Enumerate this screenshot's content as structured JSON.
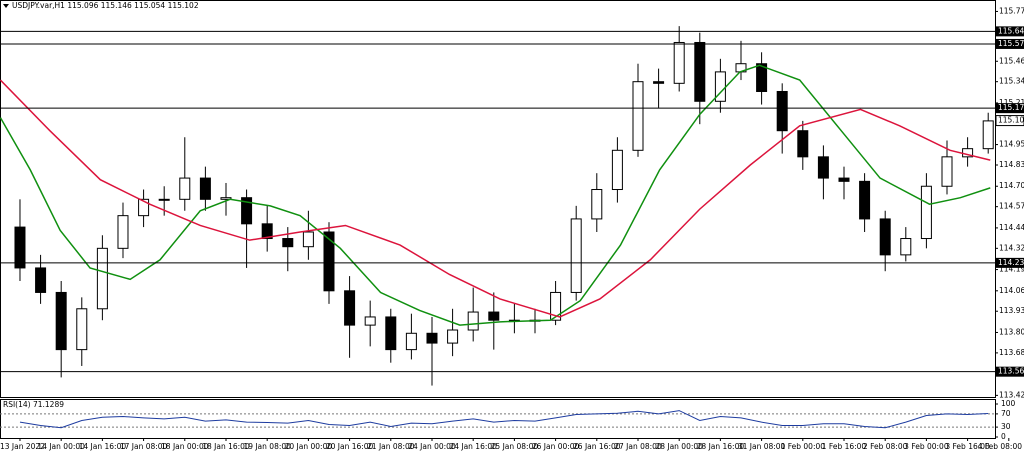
{
  "chart_data": {
    "type": "candlestick",
    "title": "USDJPY.var,H1",
    "quote": [
      115.096,
      115.146,
      115.054,
      115.102
    ],
    "x": [
      0,
      2,
      4,
      6,
      8,
      10,
      12,
      14,
      16,
      18,
      20,
      22,
      24,
      26,
      28,
      30,
      32,
      34,
      36,
      38,
      40,
      42,
      44,
      46,
      48,
      50,
      52,
      54,
      56,
      58,
      60,
      62,
      64,
      66,
      68,
      70,
      72,
      74,
      76,
      78,
      80,
      82,
      84,
      86,
      88,
      90,
      92,
      94
    ],
    "open": [
      114.45,
      114.2,
      114.05,
      113.7,
      113.95,
      114.32,
      114.52,
      114.62,
      114.62,
      114.75,
      114.62,
      114.63,
      114.47,
      114.38,
      114.33,
      114.42,
      114.06,
      113.85,
      113.9,
      113.7,
      113.8,
      113.74,
      113.82,
      113.93,
      113.88,
      113.88,
      113.88,
      114.05,
      114.5,
      114.68,
      114.92,
      115.34,
      115.33,
      115.58,
      115.22,
      115.4,
      115.45,
      115.28,
      115.04,
      114.88,
      114.75,
      114.73,
      114.5,
      114.28,
      114.38,
      114.7,
      114.88,
      114.93
    ],
    "high": [
      114.62,
      114.28,
      114.12,
      114.02,
      114.4,
      114.6,
      114.68,
      114.7,
      115.0,
      114.82,
      114.72,
      114.68,
      114.58,
      114.45,
      114.55,
      114.48,
      114.15,
      114.0,
      113.95,
      113.92,
      113.9,
      113.95,
      114.08,
      114.05,
      113.98,
      113.95,
      114.12,
      114.58,
      114.78,
      115.0,
      115.45,
      115.42,
      115.68,
      115.64,
      115.48,
      115.59,
      115.52,
      115.33,
      115.1,
      114.95,
      114.82,
      114.78,
      114.55,
      114.45,
      114.78,
      114.98,
      115.0,
      115.15
    ],
    "low": [
      114.12,
      113.98,
      113.53,
      113.6,
      113.88,
      114.26,
      114.45,
      114.52,
      114.55,
      114.55,
      114.52,
      114.2,
      114.3,
      114.18,
      114.25,
      113.98,
      113.65,
      113.72,
      113.62,
      113.64,
      113.48,
      113.66,
      113.75,
      113.7,
      113.8,
      113.8,
      113.85,
      114.0,
      114.42,
      114.6,
      114.88,
      115.18,
      115.28,
      115.08,
      115.15,
      115.35,
      115.2,
      114.9,
      114.8,
      114.62,
      114.62,
      114.42,
      114.18,
      114.24,
      114.32,
      114.65,
      114.82,
      114.9
    ],
    "close": [
      114.2,
      114.05,
      113.7,
      113.95,
      114.32,
      114.52,
      114.62,
      114.62,
      114.75,
      114.62,
      114.63,
      114.47,
      114.38,
      114.33,
      114.42,
      114.06,
      113.85,
      113.9,
      113.7,
      113.8,
      113.74,
      113.82,
      113.93,
      113.88,
      113.88,
      113.88,
      114.05,
      114.5,
      114.68,
      114.92,
      115.34,
      115.33,
      115.58,
      115.22,
      115.4,
      115.45,
      115.28,
      115.04,
      114.88,
      114.75,
      114.73,
      114.5,
      114.28,
      114.38,
      114.7,
      114.88,
      114.93,
      115.1
    ],
    "up_color": "#ffffff",
    "down_color": "#000000",
    "candle_outline": "#000000",
    "moving_averages": [
      {
        "color": "#109010",
        "x": [
          -1.9,
          1.0,
          3.9,
          6.8,
          10.7,
          13.6,
          17.5,
          20.4,
          24.3,
          27.2,
          31.1,
          35.0,
          38.8,
          42.7,
          46.6,
          51.5,
          54.4,
          58.3,
          62.1,
          66.0,
          69.9,
          71.8,
          75.7,
          79.6,
          83.5,
          88.3,
          91.3,
          94.2
        ],
        "values": [
          115.12,
          114.8,
          114.43,
          114.2,
          114.13,
          114.25,
          114.55,
          114.62,
          114.58,
          114.52,
          114.32,
          114.05,
          113.94,
          113.85,
          113.87,
          113.88,
          114.0,
          114.34,
          114.8,
          115.14,
          115.4,
          115.44,
          115.35,
          115.05,
          114.75,
          114.59,
          114.63,
          114.69
        ]
      },
      {
        "color": "#dc143c",
        "x": [
          -1.9,
          2.9,
          7.8,
          12.6,
          17.5,
          22.3,
          27.2,
          31.6,
          36.9,
          41.7,
          46.6,
          52.4,
          56.3,
          61.2,
          66.0,
          70.9,
          75.7,
          81.6,
          85.4,
          90.3,
          94.2
        ],
        "values": [
          115.35,
          115.04,
          114.74,
          114.59,
          114.46,
          114.37,
          114.42,
          114.46,
          114.34,
          114.16,
          114.01,
          113.9,
          114.01,
          114.25,
          114.56,
          114.83,
          115.07,
          115.17,
          115.07,
          114.92,
          114.86
        ]
      }
    ],
    "levels": [
      115.648,
      115.571,
      115.178,
      114.231,
      113.565
    ],
    "xlim": [
      -1.94,
      94.66
    ],
    "ylim": [
      113.41,
      115.84
    ],
    "yticks": [
      {
        "value": 115.77,
        "label": "115.770"
      },
      115.465,
      115.34,
      {
        "value": 115.21,
        "label": "115.210"
      },
      {
        "value": 115.08,
        "label": "115.080"
      },
      114.955,
      {
        "value": 114.83,
        "label": "114.830"
      },
      {
        "value": 114.7,
        "label": "114.700"
      },
      114.575,
      114.445,
      {
        "value": 114.32,
        "label": "114.320"
      },
      {
        "value": 114.19,
        "label": "114.190"
      },
      {
        "value": 114.06,
        "label": "114.060"
      },
      113.935,
      113.805,
      {
        "value": 113.68,
        "label": "113.680"
      },
      {
        "value": 113.55,
        "label": "113.550"
      },
      {
        "value": 113.42,
        "label": "113.420"
      }
    ],
    "xticks": [
      {
        "value": 0,
        "label": "13 Jan 2022"
      },
      {
        "value": 4,
        "label": "14 Jan 00:00"
      },
      {
        "value": 8,
        "label": "14 Jan 16:00"
      },
      {
        "value": 12,
        "label": "17 Jan 08:00"
      },
      {
        "value": 16,
        "label": "18 Jan 00:00"
      },
      {
        "value": 20,
        "label": "18 Jan 16:00"
      },
      {
        "value": 24,
        "label": "19 Jan 08:00"
      },
      {
        "value": 28,
        "label": "20 Jan 00:00"
      },
      {
        "value": 32,
        "label": "20 Jan 16:00"
      },
      {
        "value": 36,
        "label": "21 Jan 08:00"
      },
      {
        "value": 40,
        "label": "24 Jan 00:00"
      },
      {
        "value": 44,
        "label": "24 Jan 16:00"
      },
      {
        "value": 48,
        "label": "25 Jan 08:00"
      },
      {
        "value": 52,
        "label": "26 Jan 00:00"
      },
      {
        "value": 56,
        "label": "26 Jan 16:00"
      },
      {
        "value": 60,
        "label": "27 Jan 08:00"
      },
      {
        "value": 64,
        "label": "28 Jan 00:00"
      },
      {
        "value": 68,
        "label": "28 Jan 16:00"
      },
      {
        "value": 72,
        "label": "31 Jan 08:00"
      },
      {
        "value": 76,
        "label": "1 Feb 00:00"
      },
      {
        "value": 80,
        "label": "1 Feb 16:00"
      },
      {
        "value": 84,
        "label": "2 Feb 08:00"
      },
      {
        "value": 88,
        "label": "3 Feb 00:00"
      },
      {
        "value": 92,
        "label": "3 Feb 16:00"
      },
      {
        "value": 96,
        "label": "4 Feb 08:00"
      }
    ],
    "rsi": {
      "title": "RSI(14)",
      "current": 71.1289,
      "color": "#1e3ca0",
      "values": [
        45,
        35,
        28,
        50,
        60,
        62,
        58,
        55,
        60,
        48,
        52,
        45,
        44,
        42,
        50,
        38,
        35,
        45,
        32,
        42,
        40,
        48,
        55,
        45,
        50,
        48,
        58,
        68,
        70,
        72,
        78,
        70,
        80,
        50,
        62,
        58,
        45,
        35,
        35,
        40,
        40,
        32,
        28,
        45,
        65,
        70,
        68,
        71.13
      ],
      "ylim": [
        0,
        100
      ],
      "yticks": [
        100,
        70,
        30,
        0
      ],
      "levels": [
        70,
        30
      ]
    }
  }
}
